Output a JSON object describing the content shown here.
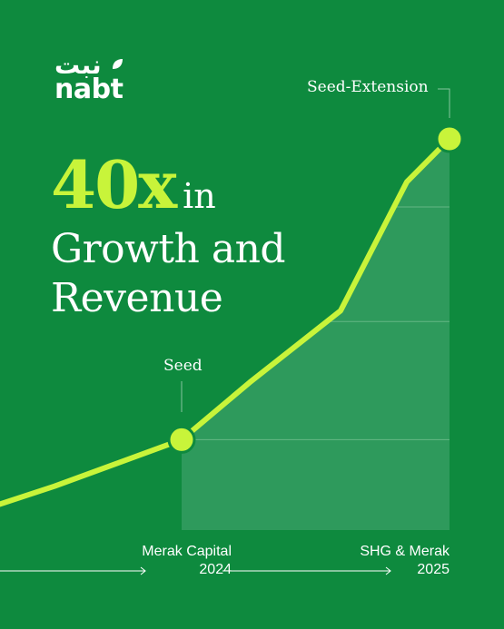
{
  "brand": {
    "name_ar": "نبت",
    "name_en": "nabt"
  },
  "headline": {
    "big": "40x",
    "in": "in",
    "line2": "Growth and",
    "line3": "Revenue"
  },
  "colors": {
    "background": "#0e8a3e",
    "accent": "#c8f43a",
    "area": "#2e9a5c",
    "text": "#ffffff"
  },
  "chart_data": {
    "type": "area",
    "title": "",
    "xlabel": "",
    "ylabel": "",
    "points": [
      {
        "x": 0,
        "y": 0.08
      },
      {
        "x": 60,
        "y": 0.13
      },
      {
        "x": 200,
        "y": 0.26
      },
      {
        "x": 275,
        "y": 0.42
      },
      {
        "x": 375,
        "y": 0.62
      },
      {
        "x": 448,
        "y": 0.98
      },
      {
        "x": 495,
        "y": 1.1
      }
    ],
    "shaded_from_x": 200,
    "markers": [
      {
        "label": "Seed",
        "x": 200,
        "y": 0.26
      },
      {
        "label": "Seed-Extension",
        "x": 495,
        "y": 1.1
      }
    ],
    "y_gridlines": [
      0.26,
      0.59,
      0.91
    ],
    "milestones": [
      {
        "investor": "Merak Capital",
        "year": "2024"
      },
      {
        "investor": "SHG & Merak",
        "year": "2025"
      }
    ]
  }
}
